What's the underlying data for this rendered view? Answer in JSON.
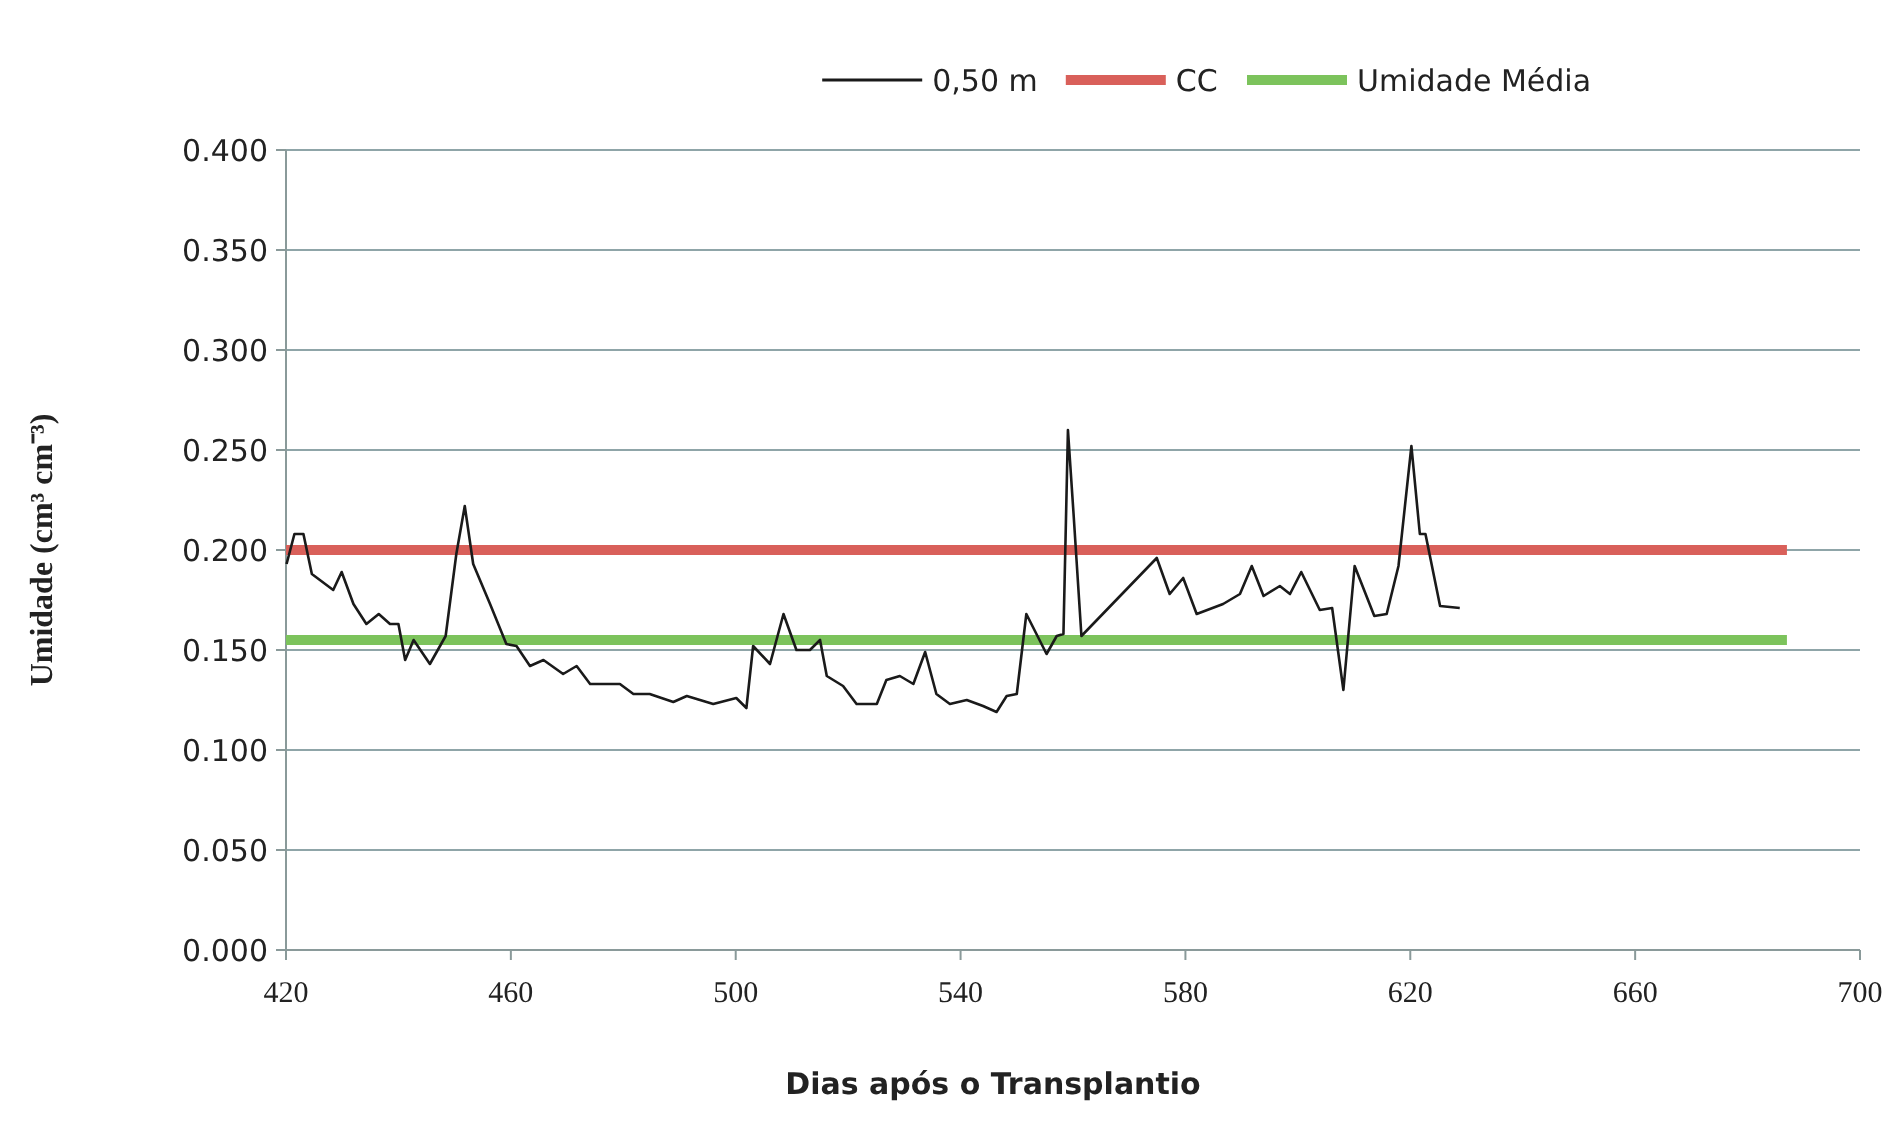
{
  "chart_data": {
    "type": "line",
    "xlabel": "Dias após o Transplantio",
    "ylabel": "Umidade (cm³ cm⁻³)",
    "xlim": [
      420,
      700
    ],
    "xticks": [
      420,
      460,
      500,
      540,
      580,
      620,
      660,
      700
    ],
    "ylim": [
      0,
      0.4
    ],
    "yticks": [
      {
        "value": 0,
        "label": "0.000"
      },
      {
        "value": 0.05,
        "label": "0.050"
      },
      {
        "value": 0.1,
        "label": "0.100"
      },
      {
        "value": 0.15,
        "label": "0.150"
      },
      {
        "value": 0.2,
        "label": "0.200"
      },
      {
        "value": 0.25,
        "label": "0.250"
      },
      {
        "value": 0.3,
        "label": "0.300"
      },
      {
        "value": 0.35,
        "label": "0.350"
      },
      {
        "value": 0.4,
        "label": "0.400"
      }
    ],
    "grid": "y",
    "legend": "top",
    "series": [
      {
        "name": "0,50 m",
        "color": "#1a1a1a",
        "x": [
          420.1,
          421.5,
          423.1,
          424.6,
          428.4,
          429.9,
          432.0,
          434.3,
          436.5,
          438.5,
          440.0,
          441.2,
          442.7,
          445.6,
          448.4,
          450.3,
          451.8,
          453.3,
          456.3,
          459.2,
          461.0,
          463.4,
          465.8,
          469.3,
          471.7,
          474.1,
          479.4,
          481.8,
          484.7,
          488.9,
          491.3,
          496.0,
          500.1,
          501.9,
          503.1,
          506.1,
          508.5,
          510.8,
          513.2,
          515.0,
          516.2,
          519.1,
          521.5,
          525.1,
          526.8,
          529.2,
          531.6,
          533.7,
          535.7,
          538.1,
          541.1,
          544.0,
          546.4,
          548.2,
          550.0,
          551.7,
          553.5,
          555.3,
          557.1,
          558.3,
          559.1,
          560.1,
          561.5,
          574.9,
          577.2,
          579.6,
          582.0,
          586.7,
          589.7,
          591.8,
          593.9,
          596.8,
          598.6,
          600.6,
          603.9,
          606.1,
          608.1,
          610.1,
          613.6,
          615.8,
          617.9,
          620.2,
          621.7,
          622.7,
          625.3,
          628.8
        ],
        "values": [
          0.193,
          0.208,
          0.208,
          0.188,
          0.18,
          0.189,
          0.173,
          0.163,
          0.168,
          0.163,
          0.163,
          0.145,
          0.155,
          0.143,
          0.157,
          0.198,
          0.222,
          0.193,
          0.173,
          0.153,
          0.152,
          0.142,
          0.145,
          0.138,
          0.142,
          0.133,
          0.133,
          0.128,
          0.128,
          0.124,
          0.127,
          0.123,
          0.126,
          0.121,
          0.152,
          0.143,
          0.168,
          0.15,
          0.15,
          0.155,
          0.137,
          0.132,
          0.123,
          0.123,
          0.135,
          0.137,
          0.133,
          0.149,
          0.128,
          0.123,
          0.125,
          0.122,
          0.119,
          0.127,
          0.128,
          0.168,
          0.158,
          0.148,
          0.157,
          0.158,
          0.26,
          0.218,
          0.157,
          0.196,
          0.178,
          0.186,
          0.168,
          0.173,
          0.178,
          0.192,
          0.177,
          0.182,
          0.178,
          0.189,
          0.17,
          0.171,
          0.13,
          0.192,
          0.167,
          0.168,
          0.192,
          0.252,
          0.208,
          0.208,
          0.172,
          0.171
        ]
      },
      {
        "name": "CC",
        "color": "#d9605a",
        "x": [
          420,
          687
        ],
        "values": [
          0.2,
          0.2
        ]
      },
      {
        "name": "Umidade Média",
        "color": "#7cc35c",
        "x": [
          420,
          687
        ],
        "values": [
          0.155,
          0.155
        ]
      }
    ]
  }
}
